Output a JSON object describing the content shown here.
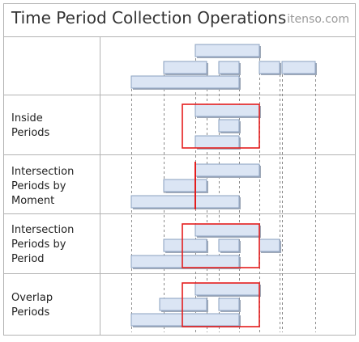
{
  "header": {
    "title": "Time Period Collection Operations",
    "brand": "itenso.com"
  },
  "rows": [
    {
      "label": ""
    },
    {
      "label": "Inside\nPeriods"
    },
    {
      "label": "Intersection\nPeriods by\nMoment"
    },
    {
      "label": "Intersection\nPeriods by\nPeriod"
    },
    {
      "label": "Overlap\nPeriods"
    }
  ],
  "colors": {
    "period_fill": "#dbe5f4",
    "period_stroke": "#8aa0bf",
    "highlight": "#e41d1d",
    "grid": "#b3b3b3"
  }
}
